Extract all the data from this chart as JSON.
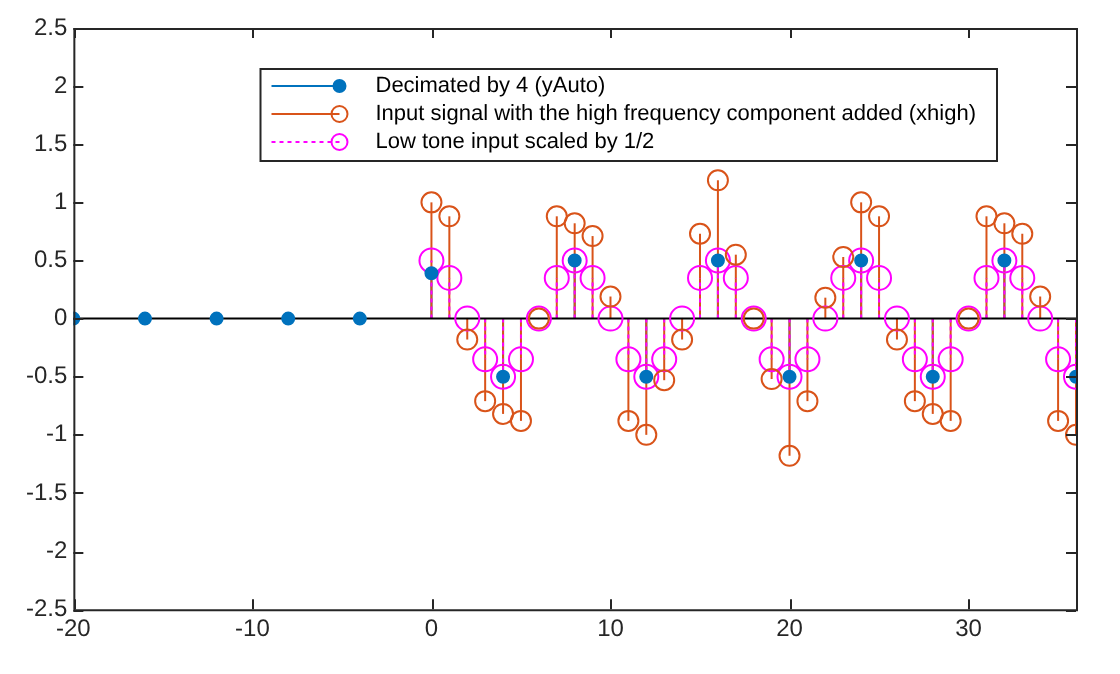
{
  "chart_data": {
    "type": "lollipop",
    "xlim": [
      -20,
      36
    ],
    "xticks": [
      -20,
      -10,
      0,
      10,
      20,
      30
    ],
    "ylim": [
      -2.5,
      2.5
    ],
    "yticks": [
      -2.5,
      -2,
      -1.5,
      -1,
      -0.5,
      0,
      0.5,
      1,
      1.5,
      2,
      2.5
    ],
    "grid": false,
    "legend": "top right",
    "marker": "circle",
    "ref_lines": [
      {
        "axis": "y",
        "value": 0,
        "color": "#000000"
      }
    ],
    "series": [
      {
        "name": "Decimated by 4 (yAuto)",
        "color": "#0072bd",
        "line_style": "solid",
        "x": [
          -20,
          -16,
          -12,
          -8,
          -4,
          0,
          4,
          8,
          12,
          16,
          20,
          24,
          28,
          32,
          36
        ],
        "values": [
          0,
          0,
          0,
          0,
          0,
          0.39,
          -0.5,
          0.5,
          -0.5,
          0.5,
          -0.5,
          0.5,
          -0.5,
          0.5,
          -0.5
        ]
      },
      {
        "name": "Input signal with the high frequency component added (xhigh)",
        "color": "#d95319",
        "line_style": "solid",
        "x": [
          0,
          1,
          2,
          3,
          4,
          5,
          6,
          7,
          8,
          9,
          10,
          11,
          12,
          13,
          14,
          15,
          16,
          17,
          18,
          19,
          20,
          21,
          22,
          23,
          24,
          25,
          26,
          27,
          28,
          29,
          30,
          31,
          32,
          33,
          34,
          35,
          36
        ],
        "values": [
          1.0,
          0.88,
          -0.18,
          -0.71,
          -0.82,
          -0.88,
          0,
          0.88,
          0.82,
          0.71,
          0.19,
          -0.88,
          -1.0,
          -0.53,
          -0.18,
          0.73,
          1.19,
          0.55,
          0,
          -0.52,
          -1.18,
          -0.71,
          0.18,
          0.53,
          1.0,
          0.88,
          -0.18,
          -0.71,
          -0.82,
          -0.88,
          0,
          0.88,
          0.82,
          0.73,
          0.19,
          -0.88,
          -1.0
        ]
      },
      {
        "name": "Low tone input scaled by 1/2",
        "color": "#ff00ff",
        "line_style": "dotted",
        "x": [
          0,
          1,
          2,
          3,
          4,
          5,
          6,
          7,
          8,
          9,
          10,
          11,
          12,
          13,
          14,
          15,
          16,
          17,
          18,
          19,
          20,
          21,
          22,
          23,
          24,
          25,
          26,
          27,
          28,
          29,
          30,
          31,
          32,
          33,
          34,
          35,
          36
        ],
        "values": [
          0.5,
          0.35,
          0,
          -0.35,
          -0.5,
          -0.35,
          0,
          0.35,
          0.5,
          0.35,
          0,
          -0.35,
          -0.5,
          -0.35,
          0,
          0.35,
          0.5,
          0.35,
          0,
          -0.35,
          -0.5,
          -0.35,
          0,
          0.35,
          0.5,
          0.35,
          0,
          -0.35,
          -0.5,
          -0.35,
          0,
          0.35,
          0.5,
          0.35,
          0,
          -0.35,
          -0.5
        ]
      }
    ]
  }
}
